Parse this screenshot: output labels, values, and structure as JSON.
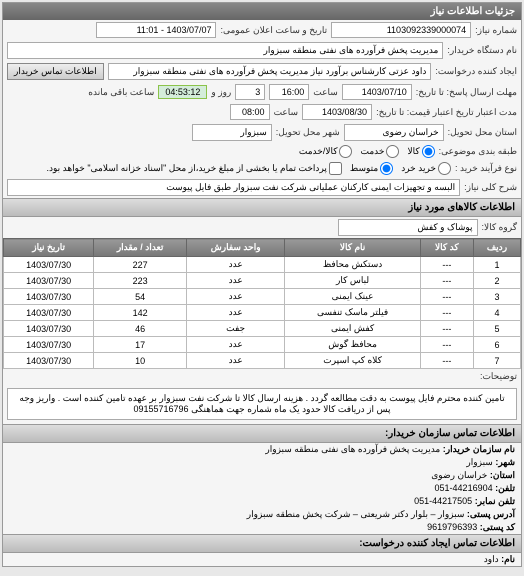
{
  "panel_title": "جزئیات اطلاعات نیاز",
  "need_number_label": "شماره نیاز:",
  "need_number": "1103092339000074",
  "announce_label": "تاریخ و ساعت اعلان عمومی:",
  "announce_value": "1403/07/07 - 11:01",
  "org_label": "نام دستگاه خریدار:",
  "org_value": "مدیریت پخش فرآورده های نفتی منطقه سبزوار",
  "creator_label": "ایجاد کننده درخواست:",
  "creator_value": "داود عزتی کارشناس برآورد نیاز مدیریت پخش فرآورده های نفتی منطقه سبزوار",
  "contact_btn": "اطلاعات تماس خریدار",
  "deadline_send_label": "مهلت ارسال پاسخ: تا تاریخ:",
  "deadline_send_date": "1403/07/10",
  "time_label": "ساعت",
  "deadline_send_time": "16:00",
  "days_label": "روز و",
  "days_value": "3",
  "remain_label": "ساعت باقی مانده",
  "remain_time": "04:53:12",
  "validity_label": "مدت اعتبار تاریخ اعتبار قیمت: تا تاریخ:",
  "validity_date": "1403/08/30",
  "validity_time": "08:00",
  "delivery_loc_label": "استان محل تحویل:",
  "delivery_loc": "خراسان رضوی",
  "city_label": "شهر محل تحویل:",
  "city": "سبزوار",
  "pack_label": "طبقه بندی موضوعی:",
  "pack_opts": [
    "کالا",
    "خدمت",
    "کالا/خدمت"
  ],
  "process_label": "نوع فرآیند خرید :",
  "process_opts": [
    "خرید خرد",
    "متوسط",
    "پرداخت تمام یا بخشی از مبلغ خرید،از محل \"اسناد خزانه اسلامی\" خواهد بود."
  ],
  "overall_label": "شرح کلی نیاز:",
  "overall_value": "البسه و تجهیزات ایمنی کارکنان عملیاتی شرکت نفت سبزوار طبق فایل پیوست",
  "goods_header": "اطلاعات کالاهای مورد نیاز",
  "group_label": "گروه کالا:",
  "group_value": "پوشاک و کفش",
  "columns": [
    "ردیف",
    "کد کالا",
    "نام کالا",
    "واحد سفارش",
    "تعداد / مقدار",
    "تاریخ نیاز"
  ],
  "rows": [
    [
      "1",
      "---",
      "دستکش محافظ",
      "عدد",
      "227",
      "1403/07/30"
    ],
    [
      "2",
      "---",
      "لباس کار",
      "عدد",
      "223",
      "1403/07/30"
    ],
    [
      "3",
      "---",
      "عینک ایمنی",
      "عدد",
      "54",
      "1403/07/30"
    ],
    [
      "4",
      "---",
      "فیلتر ماسک تنفسی",
      "عدد",
      "142",
      "1403/07/30"
    ],
    [
      "5",
      "---",
      "کفش ایمنی",
      "جفت",
      "46",
      "1403/07/30"
    ],
    [
      "6",
      "---",
      "محافظ گوش",
      "عدد",
      "17",
      "1403/07/30"
    ],
    [
      "7",
      "---",
      "کلاه کپ اسپرت",
      "عدد",
      "10",
      "1403/07/30"
    ]
  ],
  "note_header": "توضیحات:",
  "note_text": "تامین کننده محترم فایل پیوست به دقت مطالعه گردد . هزینه ارسال کالا تا شرکت نفت سبزوار بر عهده تامین کننده است . واریز وجه پس از دریافت کالا حدود یک ماه شماره جهت هماهنگی 09155716796",
  "contact_header": "اطلاعات تماس سازمان خریدار:",
  "c_org_label": "نام سازمان خریدار:",
  "c_org": "مدیریت پخش فرآورده های نفتی منطقه سبزوار",
  "c_city_label": "شهر:",
  "c_city": "سبزوار",
  "c_prov_label": "استان:",
  "c_prov": "خراسان رضوی",
  "c_tel_label": "تلفن:",
  "c_tel": "44216904-051",
  "c_fax_label": "تلفن نمابر:",
  "c_fax": "44217505-051",
  "c_addr_label": "آدرس پستی:",
  "c_addr": "سبزوار – بلوار دکتر شریعتی – شرکت پخش منطقه سبزوار",
  "c_post_label": "کد پستی:",
  "c_post": "9619796393",
  "creator_contact_header": "اطلاعات تماس ایجاد کننده درخواست:",
  "cc_name_label": "نام:",
  "cc_name": "داود"
}
